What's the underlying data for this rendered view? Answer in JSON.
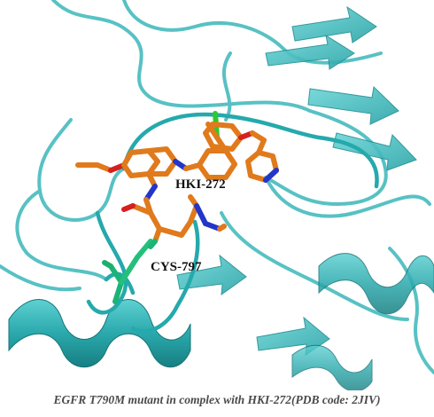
{
  "figure": {
    "labels": {
      "ligand": "HKI-272",
      "residue": "CYS-797"
    },
    "caption": "EGFR T790M mutant in complex with HKI-272(PDB code: 2JIV)"
  },
  "colors": {
    "protein_cartoon": "#2fb3b6",
    "protein_shadow": "#1f8f92",
    "ligand_carbon": "#e07a1c",
    "nitrogen": "#2236c9",
    "oxygen": "#d62020",
    "chlorine": "#2ec92e",
    "cysteine": "#23c07a"
  }
}
